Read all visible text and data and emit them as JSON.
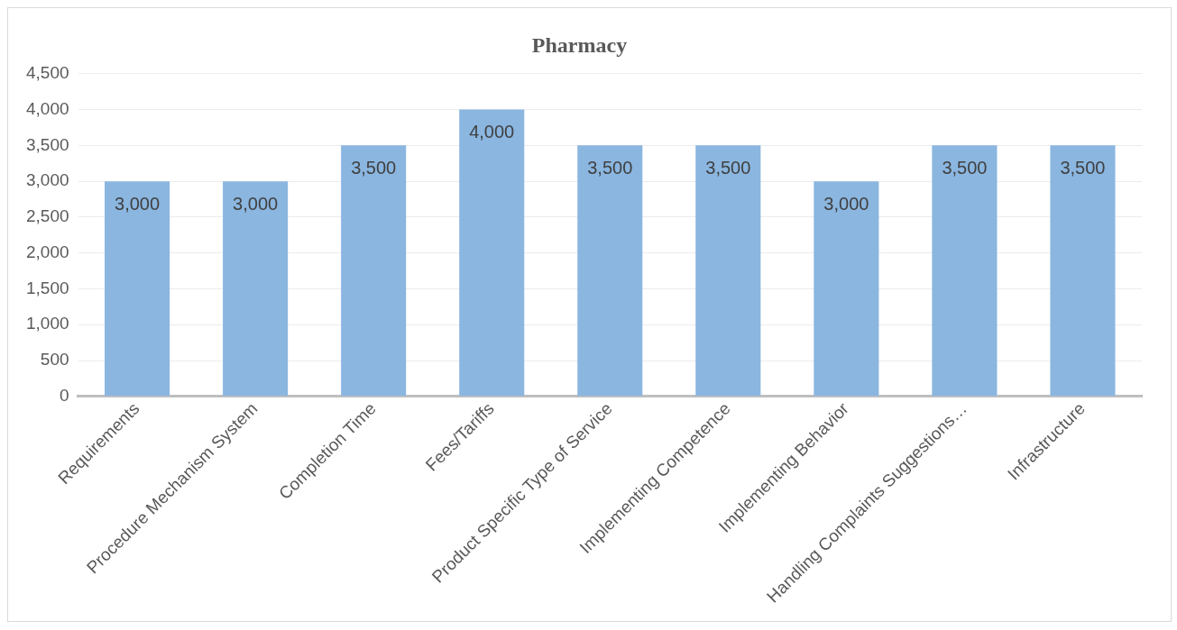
{
  "chart_data": {
    "type": "bar",
    "title": "Pharmacy",
    "categories": [
      "Requirements",
      "Procedure Mechanism System",
      "Completion Time",
      "Fees/Tariffs",
      "Product Specific Type of Service",
      "Implementing Competence",
      "Implementing Behavior",
      "Handling Complaints Suggestions…",
      "Infrastructure"
    ],
    "values": [
      3000,
      3000,
      3500,
      4000,
      3500,
      3500,
      3000,
      3500,
      3500
    ],
    "value_labels": [
      "3,000",
      "3,000",
      "3,500",
      "4,000",
      "3,500",
      "3,500",
      "3,000",
      "3,500",
      "3,500"
    ],
    "color": "#8ab6e0",
    "ylim": [
      0,
      4500
    ],
    "yticks": [
      0,
      500,
      {
        "value": 1000,
        "label": "1,000"
      },
      {
        "value": 1500,
        "label": "1,500"
      },
      {
        "value": 2000,
        "label": "2,000"
      },
      {
        "value": 2500,
        "label": "2,500"
      },
      {
        "value": 3000,
        "label": "3,000"
      },
      {
        "value": 3500,
        "label": "3,500"
      },
      {
        "value": 4000,
        "label": "4,000"
      },
      {
        "value": 4500,
        "label": "4,500"
      }
    ],
    "grid": "y",
    "legend": false
  }
}
